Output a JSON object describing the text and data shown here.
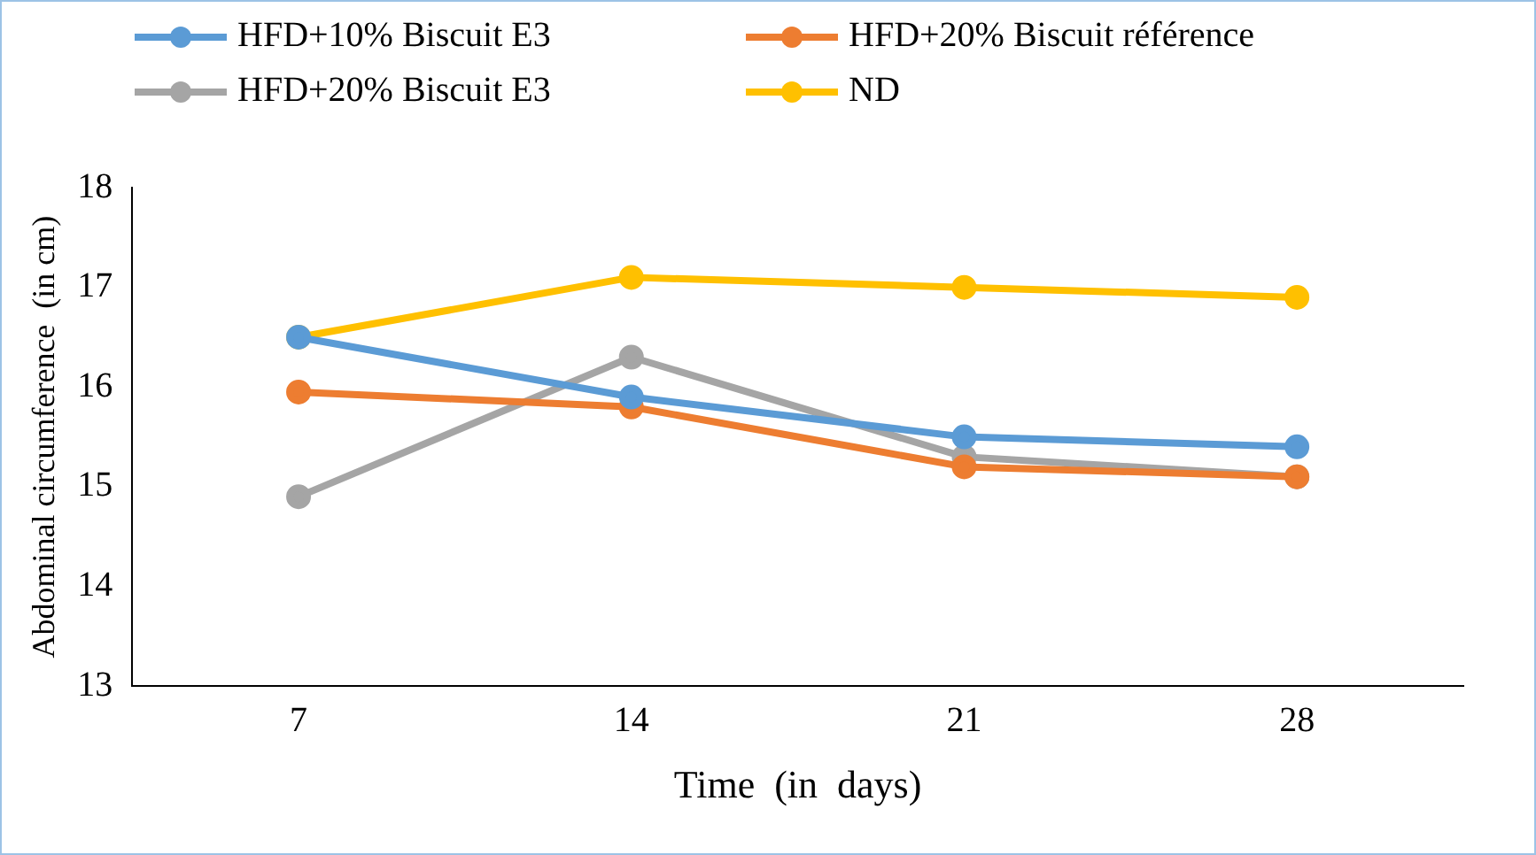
{
  "chart_data": {
    "type": "line",
    "xlabel": "Time  (in  days)",
    "ylabel": "Abdominal circumference  (in cm)",
    "categories": [
      "7",
      "14",
      "21",
      "28"
    ],
    "series": [
      {
        "name": "HFD+10% Biscuit E3",
        "color": "#5b9bd5",
        "values": [
          16.5,
          15.9,
          15.5,
          15.4
        ]
      },
      {
        "name": "HFD+20% Biscuit référence",
        "color": "#ed7d31",
        "values": [
          15.95,
          15.8,
          15.2,
          15.1
        ]
      },
      {
        "name": "HFD+20% Biscuit E3",
        "color": "#a5a5a5",
        "values": [
          14.9,
          16.3,
          15.3,
          15.1
        ]
      },
      {
        "name": "ND",
        "color": "#ffc000",
        "values": [
          16.5,
          17.1,
          17.0,
          16.9
        ]
      }
    ],
    "ylim": [
      13,
      18
    ],
    "yticks": [
      13,
      14,
      15,
      16,
      17,
      18
    ],
    "grid": false,
    "legend": "top",
    "marker": "circle",
    "line_style": "solid"
  }
}
